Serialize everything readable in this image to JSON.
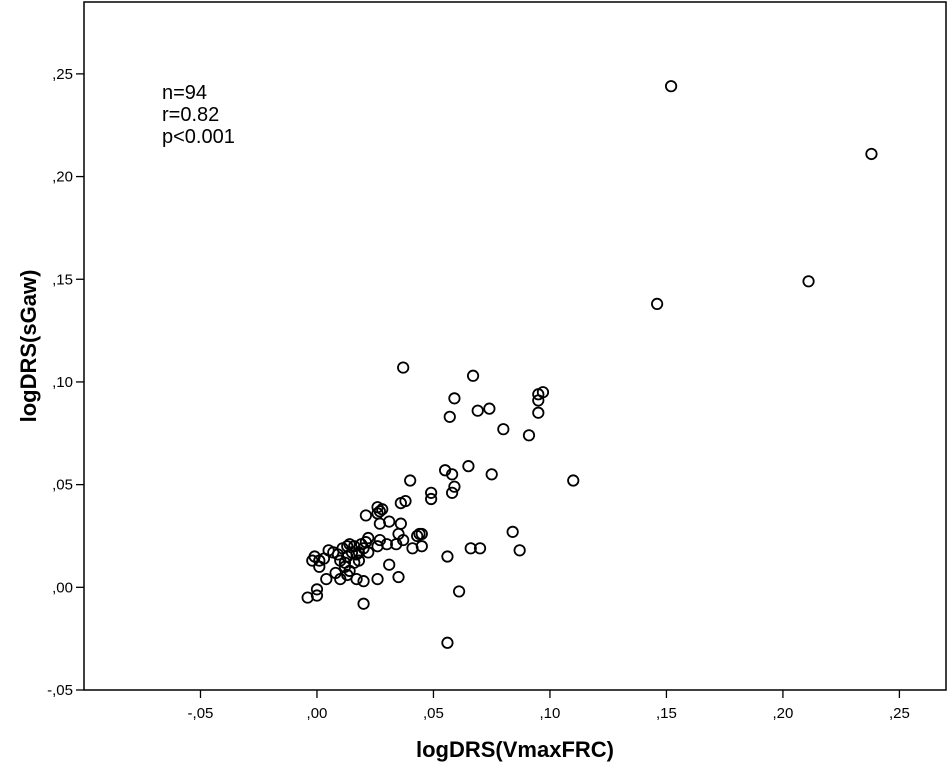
{
  "chart_data": {
    "type": "scatter",
    "title": "",
    "xlabel": "logDRS(VmaxFRC)",
    "ylabel": "logDRS(sGaw)",
    "xlim": [
      -0.1,
      0.27
    ],
    "ylim": [
      -0.05,
      0.285
    ],
    "x_ticks": [
      {
        "value": -0.05,
        "label": "-,05"
      },
      {
        "value": 0.0,
        "label": ",00"
      },
      {
        "value": 0.05,
        "label": ",05"
      },
      {
        "value": 0.1,
        "label": ",10"
      },
      {
        "value": 0.15,
        "label": ",15"
      },
      {
        "value": 0.2,
        "label": ",20"
      },
      {
        "value": 0.25,
        "label": ",25"
      }
    ],
    "y_ticks": [
      {
        "value": -0.05,
        "label": "-,05"
      },
      {
        "value": 0.0,
        "label": ",00"
      },
      {
        "value": 0.05,
        "label": ",05"
      },
      {
        "value": 0.1,
        "label": ",10"
      },
      {
        "value": 0.15,
        "label": ",15"
      },
      {
        "value": 0.2,
        "label": ",20"
      },
      {
        "value": 0.25,
        "label": ",25"
      }
    ],
    "grid": false,
    "legend": "none",
    "marker": "open-circle",
    "annotations": [
      "n=94",
      "r=0.82",
      "p<0.001"
    ],
    "points": [
      [
        0.152,
        0.244
      ],
      [
        0.238,
        0.211
      ],
      [
        0.211,
        0.149
      ],
      [
        0.146,
        0.138
      ],
      [
        0.037,
        0.107
      ],
      [
        0.067,
        0.103
      ],
      [
        0.097,
        0.095
      ],
      [
        0.095,
        0.094
      ],
      [
        0.095,
        0.091
      ],
      [
        0.059,
        0.092
      ],
      [
        0.069,
        0.086
      ],
      [
        0.074,
        0.087
      ],
      [
        0.057,
        0.083
      ],
      [
        0.095,
        0.085
      ],
      [
        0.08,
        0.077
      ],
      [
        0.091,
        0.074
      ],
      [
        0.11,
        0.052
      ],
      [
        0.065,
        0.059
      ],
      [
        0.055,
        0.057
      ],
      [
        0.058,
        0.055
      ],
      [
        0.075,
        0.055
      ],
      [
        0.04,
        0.052
      ],
      [
        0.059,
        0.049
      ],
      [
        0.058,
        0.046
      ],
      [
        0.049,
        0.046
      ],
      [
        0.049,
        0.043
      ],
      [
        0.038,
        0.042
      ],
      [
        0.036,
        0.041
      ],
      [
        0.026,
        0.039
      ],
      [
        0.028,
        0.038
      ],
      [
        0.027,
        0.037
      ],
      [
        0.026,
        0.036
      ],
      [
        0.021,
        0.035
      ],
      [
        0.031,
        0.032
      ],
      [
        0.027,
        0.031
      ],
      [
        0.036,
        0.031
      ],
      [
        0.044,
        0.026
      ],
      [
        0.045,
        0.026
      ],
      [
        0.035,
        0.026
      ],
      [
        0.043,
        0.025
      ],
      [
        0.084,
        0.027
      ],
      [
        0.037,
        0.023
      ],
      [
        0.041,
        0.019
      ],
      [
        0.045,
        0.02
      ],
      [
        0.03,
        0.021
      ],
      [
        0.026,
        0.02
      ],
      [
        0.034,
        0.021
      ],
      [
        0.066,
        0.019
      ],
      [
        0.07,
        0.019
      ],
      [
        0.087,
        0.018
      ],
      [
        0.056,
        0.015
      ],
      [
        0.021,
        0.022
      ],
      [
        0.019,
        0.021
      ],
      [
        0.02,
        0.019
      ],
      [
        0.022,
        0.017
      ],
      [
        0.018,
        0.017
      ],
      [
        0.016,
        0.02
      ],
      [
        0.014,
        0.021
      ],
      [
        0.013,
        0.02
      ],
      [
        0.011,
        0.019
      ],
      [
        0.015,
        0.017
      ],
      [
        0.017,
        0.016
      ],
      [
        0.013,
        0.015
      ],
      [
        0.009,
        0.016
      ],
      [
        0.007,
        0.017
      ],
      [
        0.005,
        0.018
      ],
      [
        0.003,
        0.014
      ],
      [
        -0.001,
        0.015
      ],
      [
        -0.002,
        0.013
      ],
      [
        0.001,
        0.013
      ],
      [
        0.01,
        0.013
      ],
      [
        0.012,
        0.012
      ],
      [
        0.016,
        0.012
      ],
      [
        0.018,
        0.013
      ],
      [
        0.012,
        0.01
      ],
      [
        0.014,
        0.008
      ],
      [
        0.013,
        0.006
      ],
      [
        0.008,
        0.007
      ],
      [
        0.001,
        0.01
      ],
      [
        0.004,
        0.004
      ],
      [
        0.01,
        0.004
      ],
      [
        0.017,
        0.004
      ],
      [
        0.02,
        0.003
      ],
      [
        0.026,
        0.004
      ],
      [
        0.031,
        0.011
      ],
      [
        0.035,
        0.005
      ],
      [
        0.0,
        -0.001
      ],
      [
        0.0,
        -0.004
      ],
      [
        -0.004,
        -0.005
      ],
      [
        0.061,
        -0.002
      ],
      [
        0.02,
        -0.008
      ],
      [
        0.056,
        -0.027
      ],
      [
        0.027,
        0.023
      ],
      [
        0.022,
        0.024
      ]
    ]
  }
}
